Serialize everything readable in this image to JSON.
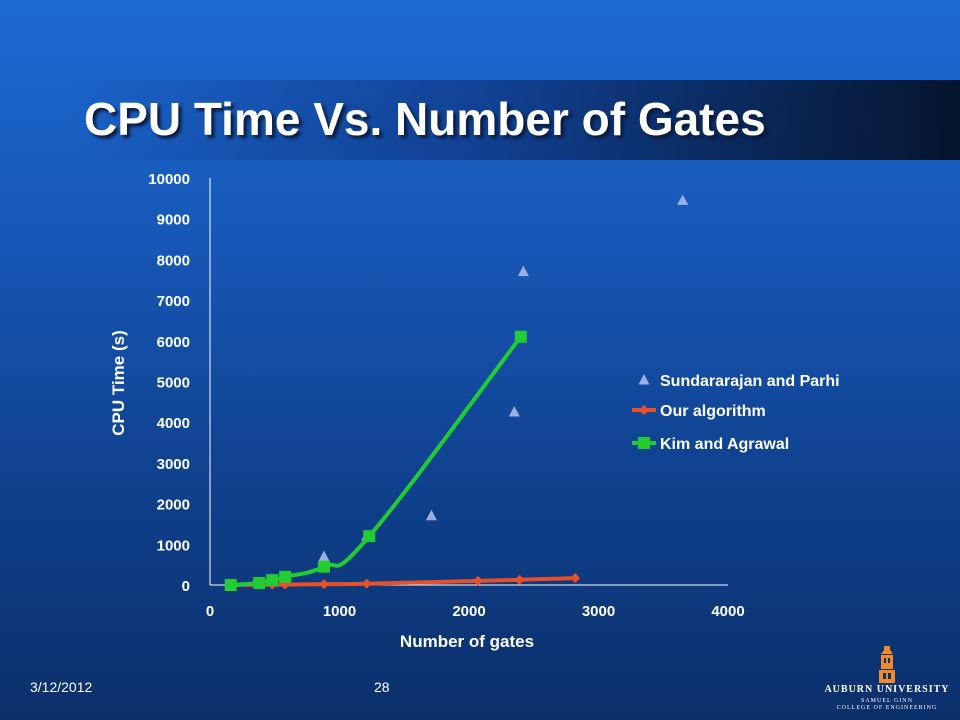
{
  "slide": {
    "title": "CPU Time Vs. Number of Gates",
    "date": "3/12/2012",
    "page_number": "28",
    "logo_name": "AUBURN UNIVERSITY",
    "logo_sub_1": "SAMUEL GINN",
    "logo_sub_2": "COLLEGE OF ENGINEERING"
  },
  "colors": {
    "sundararajan": "#9aaee0",
    "ours": "#e8502a",
    "kim": "#22cc33",
    "text": "#ffffff",
    "axis": "#ffffff",
    "logo": "#f08a2a"
  },
  "chart_data": {
    "type": "scatter",
    "title": "",
    "xlabel": "Number of gates",
    "ylabel": "CPU Time (s)",
    "xlim": [
      0,
      4000
    ],
    "ylim": [
      0,
      10000
    ],
    "xticks": [
      "0",
      "1000",
      "2000",
      "3000",
      "4000"
    ],
    "yticks": [
      "0",
      "1000",
      "2000",
      "3000",
      "4000",
      "5000",
      "6000",
      "7000",
      "8000",
      "9000",
      "10000"
    ],
    "grid": false,
    "legend_position": "right",
    "series": [
      {
        "name": "Sundararajan and Parhi",
        "marker": "triangle",
        "line": false,
        "color_key": "sundararajan",
        "points": [
          {
            "x": 160,
            "y": 0
          },
          {
            "x": 380,
            "y": 60
          },
          {
            "x": 480,
            "y": 100
          },
          {
            "x": 580,
            "y": 150
          },
          {
            "x": 880,
            "y": 700
          },
          {
            "x": 1210,
            "y": 1200
          },
          {
            "x": 1710,
            "y": 1700
          },
          {
            "x": 2350,
            "y": 4250
          },
          {
            "x": 2420,
            "y": 7700
          },
          {
            "x": 3650,
            "y": 9450
          }
        ]
      },
      {
        "name": "Our algorithm",
        "marker": "diamond",
        "line": true,
        "color_key": "ours",
        "points": [
          {
            "x": 160,
            "y": 0
          },
          {
            "x": 380,
            "y": 5
          },
          {
            "x": 480,
            "y": 8
          },
          {
            "x": 580,
            "y": 10
          },
          {
            "x": 880,
            "y": 20
          },
          {
            "x": 1210,
            "y": 30
          },
          {
            "x": 2070,
            "y": 100
          },
          {
            "x": 2390,
            "y": 130
          },
          {
            "x": 2820,
            "y": 170
          }
        ]
      },
      {
        "name": "Kim and Agrawal",
        "marker": "square",
        "line": true,
        "color_key": "kim",
        "points": [
          {
            "x": 160,
            "y": 0
          },
          {
            "x": 380,
            "y": 50
          },
          {
            "x": 480,
            "y": 120
          },
          {
            "x": 580,
            "y": 200
          },
          {
            "x": 880,
            "y": 450
          },
          {
            "x": 1230,
            "y": 1200
          },
          {
            "x": 2400,
            "y": 6100
          }
        ]
      }
    ]
  }
}
